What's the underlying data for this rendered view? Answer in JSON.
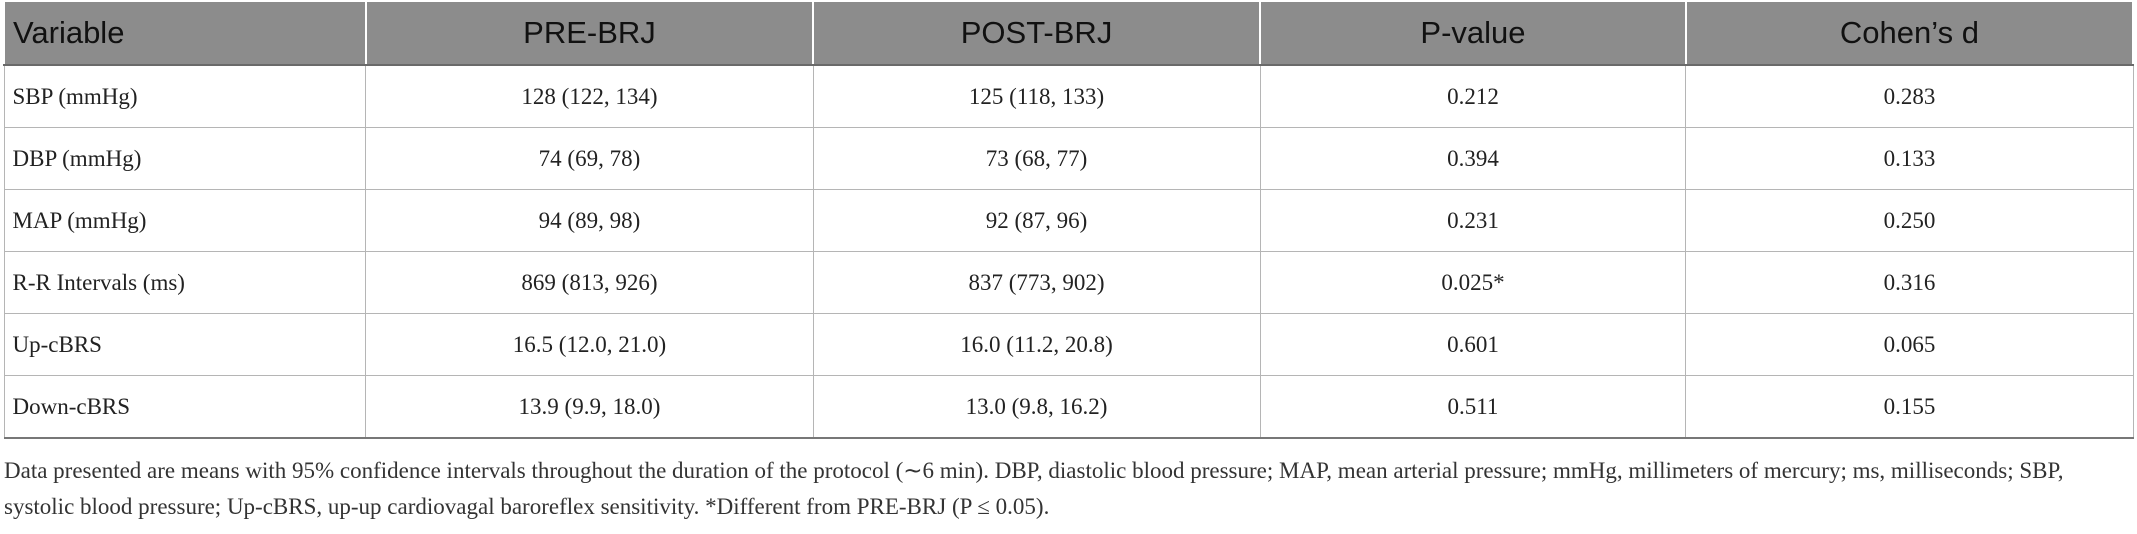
{
  "table": {
    "header": [
      "Variable",
      "PRE-BRJ",
      "POST-BRJ",
      "P-value",
      "Cohen’s d"
    ],
    "rows": [
      [
        "SBP (mmHg)",
        "128 (122, 134)",
        "125 (118, 133)",
        "0.212",
        "0.283"
      ],
      [
        "DBP (mmHg)",
        "74 (69, 78)",
        "73 (68, 77)",
        "0.394",
        "0.133"
      ],
      [
        "MAP (mmHg)",
        "94 (89, 98)",
        "92 (87, 96)",
        "0.231",
        "0.250"
      ],
      [
        "R-R Intervals (ms)",
        "869 (813, 926)",
        "837 (773, 902)",
        "0.025*",
        "0.316"
      ],
      [
        "Up-cBRS",
        "16.5 (12.0, 21.0)",
        "16.0 (11.2, 20.8)",
        "0.601",
        "0.065"
      ],
      [
        "Down-cBRS",
        "13.9 (9.9, 18.0)",
        "13.0 (9.8, 16.2)",
        "0.511",
        "0.155"
      ]
    ]
  },
  "footnote": "Data presented are means with 95% confidence intervals throughout the duration of the protocol (∼6 min). DBP, diastolic blood pressure; MAP, mean arterial pressure; mmHg, millimeters of mercury; ms, milliseconds; SBP, systolic blood pressure; Up-cBRS, up-up cardiovagal baroreflex sensitivity. *Different from PRE-BRJ (P ≤ 0.05)."
}
